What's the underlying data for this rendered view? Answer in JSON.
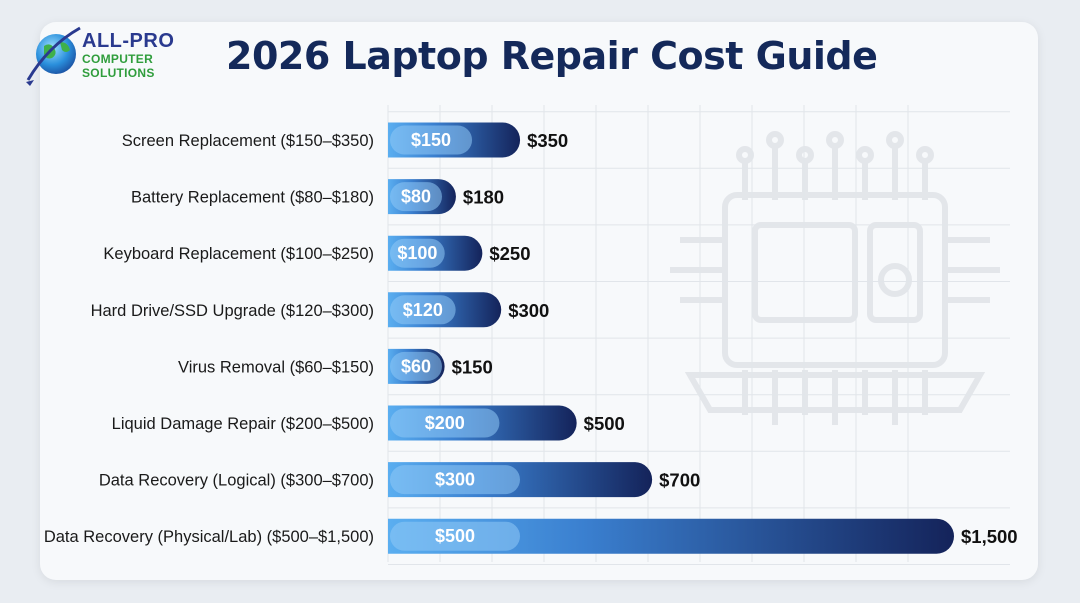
{
  "logo": {
    "line1": "ALL-PRO",
    "line2": "COMPUTER",
    "line3": "SOLUTIONS"
  },
  "title": "2026 Laptop Repair Cost Guide",
  "colors": {
    "bar_light": "#5aaef0",
    "bar_dark": "#14235a",
    "pill": "#8fc8f6",
    "title": "#14295a",
    "label": "#1a1a1a"
  },
  "chart_data": {
    "type": "bar",
    "orientation": "horizontal",
    "range_bars": true,
    "grid": true,
    "categories": [
      "Screen Replacement ($150–$350)",
      "Battery Replacement ($80–$180)",
      "Keyboard Replacement ($100–$250)",
      "Hard Drive/SSD Upgrade ($120–$300)",
      "Virus Removal ($60–$150)",
      "Liquid Damage Repair ($200–$500)",
      "Data Recovery (Logical) ($300–$700)",
      "Data Recovery (Physical/Lab) ($500–$1,500)"
    ],
    "min_values": [
      150,
      80,
      100,
      120,
      60,
      200,
      300,
      500
    ],
    "max_values": [
      350,
      180,
      250,
      300,
      150,
      500,
      700,
      1500
    ],
    "min_labels": [
      "$150",
      "$80",
      "$100",
      "$120",
      "$60",
      "$200",
      "$300",
      "$500"
    ],
    "max_labels": [
      "$350",
      "$180",
      "$250",
      "$300",
      "$150",
      "$500",
      "$700",
      "$1,500"
    ],
    "xlim": [
      0,
      1500
    ]
  }
}
